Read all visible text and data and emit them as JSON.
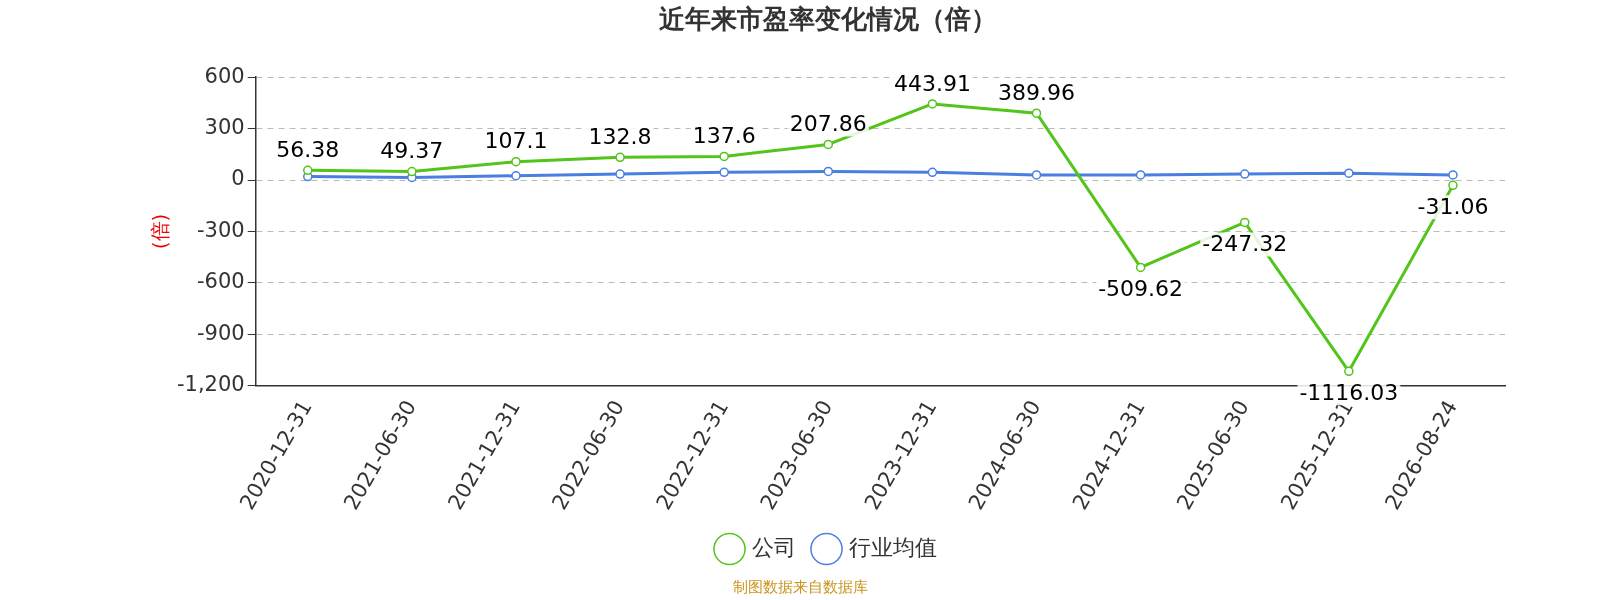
{
  "chart_data": {
    "type": "line",
    "title": "近年来市盈率变化情况（倍）",
    "ylabel": "(倍)",
    "categories": [
      "2020-12-31",
      "2021-06-30",
      "2021-12-31",
      "2022-06-30",
      "2022-12-31",
      "2023-06-30",
      "2023-12-31",
      "2024-06-30",
      "2024-12-31",
      "2025-06-30",
      "2025-12-31",
      "2026-08-24"
    ],
    "series": [
      {
        "name": "公司",
        "color": "#52c41a",
        "values": [
          56.38,
          49.37,
          107.1,
          132.8,
          137.6,
          207.86,
          443.91,
          389.96,
          -509.62,
          -247.32,
          -1116.03,
          -31.06
        ],
        "value_labels": [
          "56.38",
          "49.37",
          "107.1",
          "132.8",
          "137.6",
          "207.86",
          "443.91",
          "389.96",
          "-509.62",
          "-247.32",
          "-1116.03",
          "-31.06"
        ]
      },
      {
        "name": "行业均值",
        "color": "#4a7ee0",
        "values": [
          20,
          15,
          25,
          35,
          45,
          50,
          45,
          30,
          30,
          35,
          40,
          30
        ]
      }
    ],
    "ylim": [
      -1200,
      600
    ],
    "yticks": [
      {
        "value": -1200,
        "label": "-1,200"
      },
      -900,
      -600,
      -300,
      0,
      300,
      600
    ],
    "grid": "y",
    "legend": "bottom",
    "marker": "circle",
    "line_style": "solid",
    "annotations": [
      "制图数据来自数据库"
    ]
  }
}
